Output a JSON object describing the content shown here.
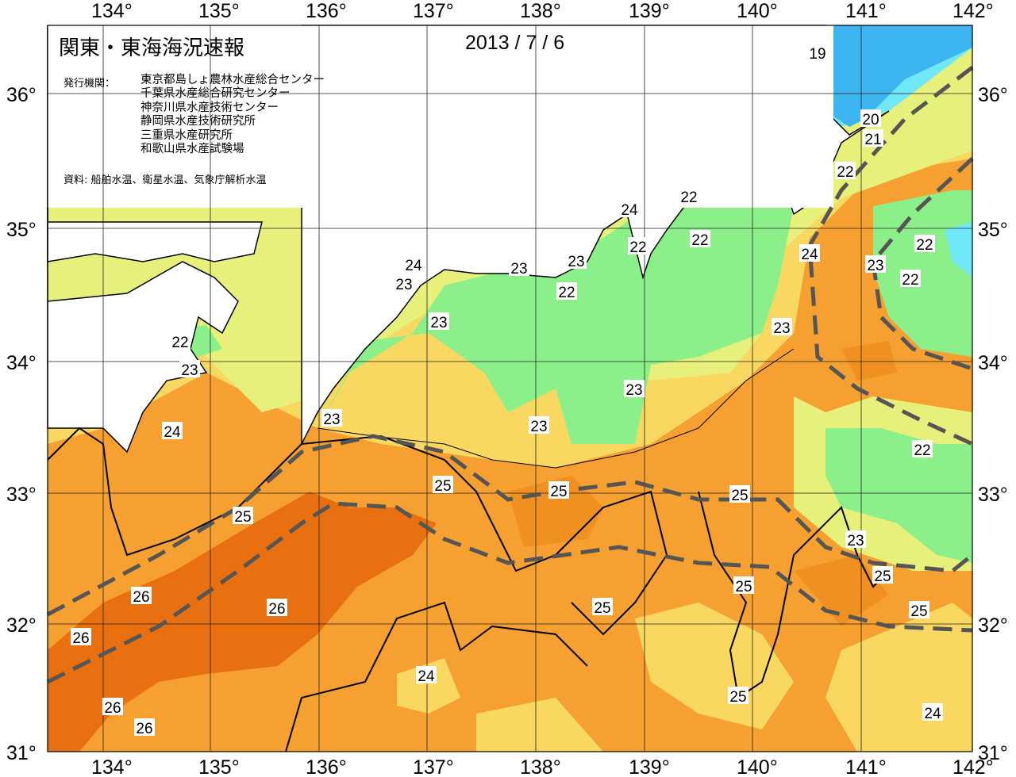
{
  "title": "関東・東海海況速報",
  "date": "2013 / 7 / 6",
  "issuer_label": "発行機関：",
  "issuers": [
    "東京都島しょ農林水産総合センター",
    "千葉県水産総合研究センター",
    "神奈川県水産技術センター",
    "静岡県水産技術研究所",
    "三重県水産研究所",
    "和歌山県水産試験場"
  ],
  "source": "資料: 船舶水温、衛星水温、気象庁解析水温",
  "longitude_labels": [
    "134°",
    "135°",
    "136°",
    "137°",
    "138°",
    "139°",
    "140°",
    "141°",
    "142°"
  ],
  "latitude_labels": [
    "36°",
    "35°",
    "34°",
    "33°",
    "32°",
    "31°"
  ],
  "contour_labels": [
    "19",
    "20",
    "21",
    "22",
    "24",
    "22",
    "22",
    "22",
    "24",
    "23",
    "22",
    "22",
    "23",
    "24",
    "23",
    "23",
    "22",
    "22",
    "23",
    "23",
    "23",
    "23",
    "23",
    "24",
    "23",
    "22",
    "25",
    "25",
    "25",
    "25",
    "23",
    "25",
    "25",
    "25",
    "25",
    "26",
    "26",
    "26",
    "26",
    "26",
    "24",
    "25",
    "24"
  ],
  "colors": {
    "t19": "#3cb4f0",
    "t20": "#70e8f8",
    "t22": "#8cf08a",
    "t23": "#e6f07a",
    "t24": "#f8d860",
    "t25": "#f5a030",
    "t26": "#e87010",
    "kuroshio_axis": "#555555",
    "land": "#ffffff"
  }
}
